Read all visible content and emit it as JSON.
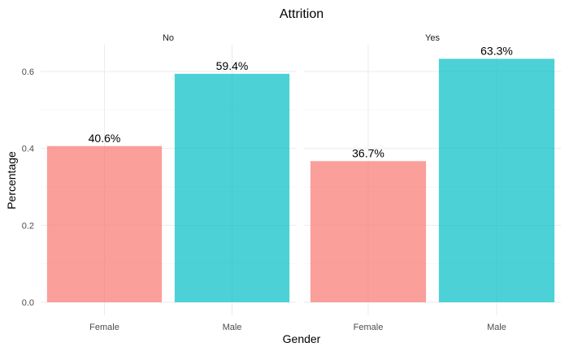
{
  "chart_data": {
    "type": "bar",
    "title": "Attrition",
    "xlabel": "Gender",
    "ylabel": "Percentage",
    "ylim": [
      0,
      0.66
    ],
    "yticks": [
      "0.0",
      "0.2",
      "0.4",
      "0.6"
    ],
    "ytick_values": [
      0,
      0.2,
      0.4,
      0.6
    ],
    "categories": [
      "Female",
      "Male"
    ],
    "colors": {
      "Female": "#F8766D",
      "Male": "#00BFC4"
    },
    "facets": [
      {
        "name": "No",
        "values": [
          0.406,
          0.594
        ],
        "labels": [
          "40.6%",
          "59.4%"
        ]
      },
      {
        "name": "Yes",
        "values": [
          0.367,
          0.633
        ],
        "labels": [
          "36.7%",
          "63.3%"
        ]
      }
    ],
    "grid": true,
    "legend": "none"
  }
}
